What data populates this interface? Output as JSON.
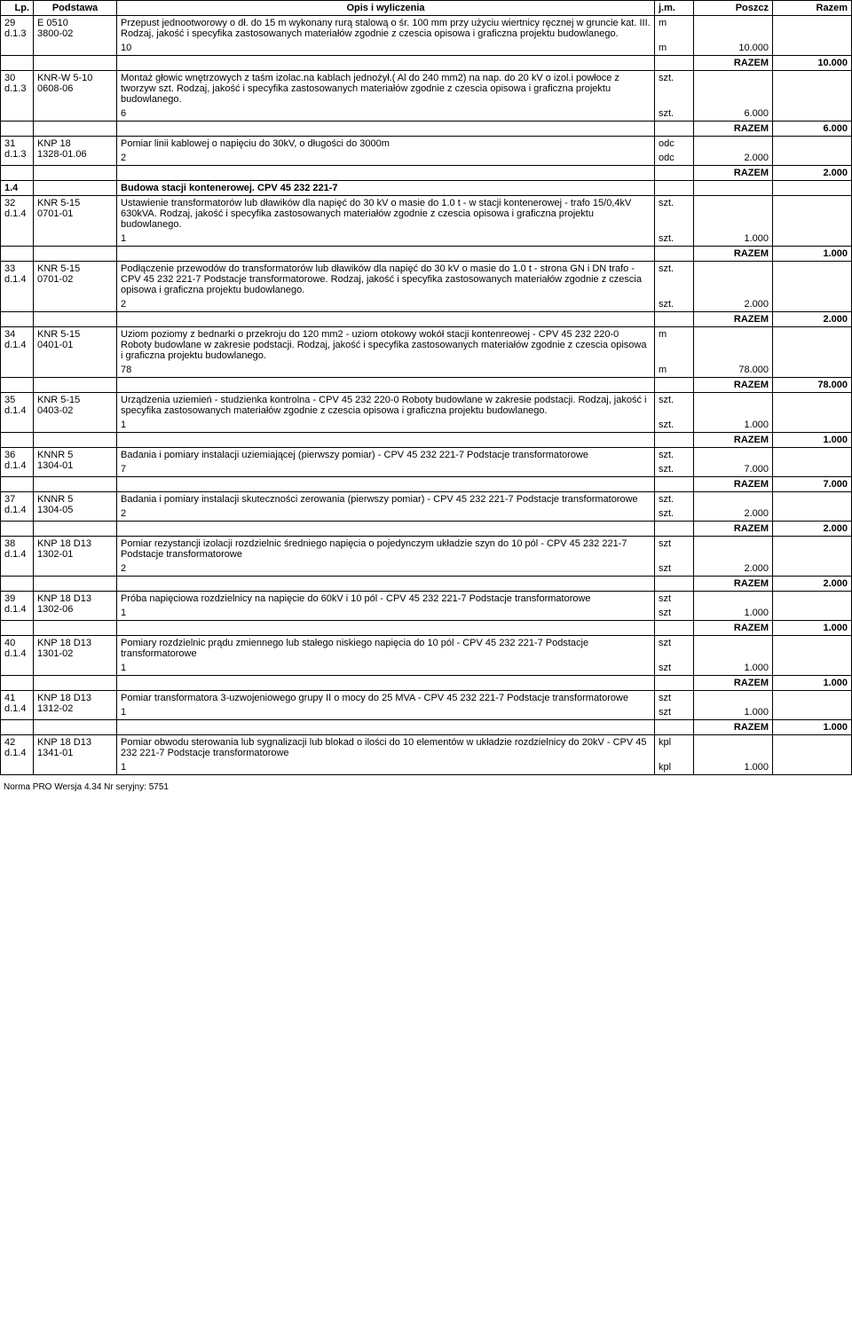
{
  "headers": {
    "lp": "Lp.",
    "podstawa": "Podstawa",
    "opis": "Opis i wyliczenia",
    "jm": "j.m.",
    "poszcz": "Poszcz",
    "razem": "Razem"
  },
  "razem_label": "RAZEM",
  "footer": "Norma PRO Wersja 4.34 Nr seryjny: 5751",
  "rows": [
    {
      "lp": "29",
      "sub": "d.1.3",
      "podstawa": "E 0510\n3800-02",
      "opis": "Przepust jednootworowy o dł. do 15 m wykonany rurą stalową o śr. 100 mm przy użyciu wiertnicy ręcznej w gruncie kat. III. Rodzaj, jakość i specyfika zastosowanych materiałów zgodnie z czescia opisowa i graficzna projektu budowlanego.",
      "jm": "m",
      "calc": "10",
      "calc_jm": "m",
      "calc_val": "10.000",
      "razem": "10.000"
    },
    {
      "lp": "30",
      "sub": "d.1.3",
      "podstawa": "KNR-W 5-10\n0608-06",
      "opis": "Montaż głowic wnętrzowych z taśm izolac.na kablach jednożył.( Al do 240 mm2) na nap. do 20 kV o izol.i powłoce z tworzyw szt. Rodzaj, jakość i specyfika zastosowanych materiałów zgodnie z czescia opisowa i graficzna projektu budowlanego.",
      "jm": "szt.",
      "calc": "6",
      "calc_jm": "szt.",
      "calc_val": "6.000",
      "razem": "6.000"
    },
    {
      "lp": "31",
      "sub": "d.1.3",
      "podstawa": "KNP 18\n1328-01.06",
      "opis": "Pomiar linii kablowej o napięciu do 30kV, o długości do 3000m",
      "jm": "odc",
      "calc": "2",
      "calc_jm": "odc",
      "calc_val": "2.000",
      "razem": "2.000"
    },
    {
      "section": true,
      "lp": "1.4",
      "opis": "Budowa stacji kontenerowej. CPV 45 232 221-7"
    },
    {
      "lp": "32",
      "sub": "d.1.4",
      "podstawa": "KNR 5-15\n0701-01",
      "opis": "Ustawienie transformatorów lub dławików dla napięć do 30 kV o masie do 1.0 t - w stacji kontenerowej - trafo 15/0,4kV 630kVA. Rodzaj, jakość i specyfika zastosowanych materiałów zgodnie z czescia opisowa i graficzna projektu budowlanego.",
      "jm": "szt.",
      "calc": "1",
      "calc_jm": "szt.",
      "calc_val": "1.000",
      "razem": "1.000"
    },
    {
      "lp": "33",
      "sub": "d.1.4",
      "podstawa": "KNR 5-15\n0701-02",
      "opis": "Podłączenie przewodów do transformatorów lub dławików dla napięć do 30 kV o masie do 1.0 t - strona GN i DN trafo - CPV 45 232 221-7 Podstacje transformatorowe. Rodzaj, jakość i specyfika zastosowanych materiałów zgodnie z czescia opisowa i graficzna projektu budowlanego.",
      "jm": "szt.",
      "calc": "2",
      "calc_jm": "szt.",
      "calc_val": "2.000",
      "razem": "2.000"
    },
    {
      "lp": "34",
      "sub": "d.1.4",
      "podstawa": "KNR 5-15\n0401-01",
      "opis": "Uziom poziomy z bednarki o przekroju do 120 mm2 - uziom otokowy wokół stacji kontenreowej - CPV 45 232 220-0 Roboty budowlane w zakresie podstacji. Rodzaj, jakość i specyfika zastosowanych materiałów zgodnie z czescia opisowa i graficzna projektu budowlanego.",
      "jm": "m",
      "calc": "78",
      "calc_jm": "m",
      "calc_val": "78.000",
      "razem": "78.000"
    },
    {
      "lp": "35",
      "sub": "d.1.4",
      "podstawa": "KNR 5-15\n0403-02",
      "opis": "Urządzenia uziemień - studzienka kontrolna - CPV 45 232 220-0 Roboty budowlane w zakresie podstacji. Rodzaj, jakość i specyfika zastosowanych materiałów zgodnie z czescia opisowa i graficzna projektu budowlanego.",
      "jm": "szt.",
      "calc": "1",
      "calc_jm": "szt.",
      "calc_val": "1.000",
      "razem": "1.000"
    },
    {
      "lp": "36",
      "sub": "d.1.4",
      "podstawa": "KNNR 5\n1304-01",
      "opis": "Badania i pomiary instalacji uziemiającej (pierwszy pomiar) - CPV 45 232 221-7 Podstacje transformatorowe",
      "jm": "szt.",
      "calc": "7",
      "calc_jm": "szt.",
      "calc_val": "7.000",
      "razem": "7.000"
    },
    {
      "lp": "37",
      "sub": "d.1.4",
      "podstawa": "KNNR 5\n1304-05",
      "opis": "Badania i pomiary instalacji skuteczności zerowania (pierwszy pomiar) - CPV 45 232 221-7 Podstacje transformatorowe",
      "jm": "szt.",
      "calc": "2",
      "calc_jm": "szt.",
      "calc_val": "2.000",
      "razem": "2.000"
    },
    {
      "lp": "38",
      "sub": "d.1.4",
      "podstawa": "KNP 18 D13\n1302-01",
      "opis": "Pomiar rezystancji izolacji rozdzielnic średniego napięcia o pojedynczym układzie szyn do 10 pól - CPV 45 232 221-7 Podstacje transformatorowe",
      "jm": "szt",
      "calc": "2",
      "calc_jm": "szt",
      "calc_val": "2.000",
      "razem": "2.000"
    },
    {
      "lp": "39",
      "sub": "d.1.4",
      "podstawa": "KNP 18 D13\n1302-06",
      "opis": "Próba napięciowa rozdzielnicy na napięcie do 60kV i 10 pól - CPV 45 232 221-7 Podstacje transformatorowe",
      "jm": "szt",
      "calc": "1",
      "calc_jm": "szt",
      "calc_val": "1.000",
      "razem": "1.000"
    },
    {
      "lp": "40",
      "sub": "d.1.4",
      "podstawa": "KNP 18 D13\n1301-02",
      "opis": "Pomiary rozdzielnic prądu zmiennego lub stałego niskiego napięcia do 10 pól - CPV 45 232 221-7 Podstacje transformatorowe",
      "jm": "szt",
      "calc": "1",
      "calc_jm": "szt",
      "calc_val": "1.000",
      "razem": "1.000"
    },
    {
      "lp": "41",
      "sub": "d.1.4",
      "podstawa": "KNP 18 D13\n1312-02",
      "opis": "Pomiar transformatora 3-uzwojeniowego grupy II o mocy do 25 MVA - CPV 45 232 221-7 Podstacje transformatorowe",
      "jm": "szt",
      "calc": "1",
      "calc_jm": "szt",
      "calc_val": "1.000",
      "razem": "1.000"
    },
    {
      "lp": "42",
      "sub": "d.1.4",
      "podstawa": "KNP 18 D13\n1341-01",
      "opis": "Pomiar obwodu sterowania lub sygnalizacji lub blokad o ilości do 10 elementów w układzie rozdzielnicy do 20kV - CPV 45 232 221-7 Podstacje transformatorowe",
      "jm": "kpl",
      "calc": "1",
      "calc_jm": "kpl",
      "calc_val": "1.000",
      "razem": null
    }
  ]
}
